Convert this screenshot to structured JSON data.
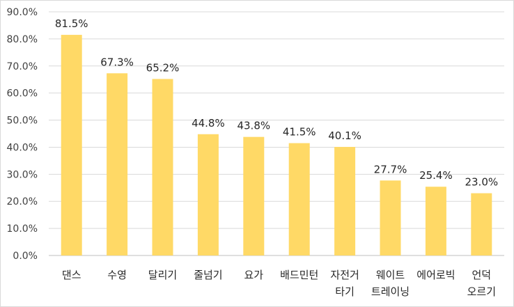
{
  "chart_data": {
    "type": "bar",
    "categories": [
      [
        "댄스"
      ],
      [
        "수영"
      ],
      [
        "달리기"
      ],
      [
        "줄넘기"
      ],
      [
        "요가"
      ],
      [
        "배드민턴"
      ],
      [
        "자전거",
        "타기"
      ],
      [
        "웨이트",
        "트레이닝"
      ],
      [
        "에어로빅"
      ],
      [
        "언덕",
        "오르기"
      ]
    ],
    "values": [
      81.5,
      67.3,
      65.2,
      44.8,
      43.8,
      41.5,
      40.1,
      27.7,
      25.4,
      23.0
    ],
    "value_labels": [
      "81.5%",
      "67.3%",
      "65.2%",
      "44.8%",
      "43.8%",
      "41.5%",
      "40.1%",
      "27.7%",
      "25.4%",
      "23.0%"
    ],
    "yticks": [
      0,
      10,
      20,
      30,
      40,
      50,
      60,
      70,
      80,
      90
    ],
    "ytick_labels": [
      "0.0%",
      "10.0%",
      "20.0%",
      "30.0%",
      "40.0%",
      "50.0%",
      "60.0%",
      "70.0%",
      "80.0%",
      "90.0%"
    ],
    "ylim": [
      0,
      90
    ],
    "grid": true,
    "bar_color": "#ffd966",
    "grid_color": "#d9d9d9",
    "axis_color": "#bfbfbf"
  }
}
